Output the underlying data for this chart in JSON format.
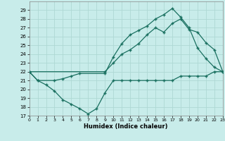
{
  "xlabel": "Humidex (Indice chaleur)",
  "bg_color": "#c8ecea",
  "grid_color": "#aed8d4",
  "line_color": "#1a7060",
  "xlim": [
    0,
    23
  ],
  "ylim": [
    17,
    30
  ],
  "yticks": [
    17,
    18,
    19,
    20,
    21,
    22,
    23,
    24,
    25,
    26,
    27,
    28,
    29
  ],
  "xticks": [
    0,
    1,
    2,
    3,
    4,
    5,
    6,
    7,
    8,
    9,
    10,
    11,
    12,
    13,
    14,
    15,
    16,
    17,
    18,
    19,
    20,
    21,
    22,
    23
  ],
  "line1_x": [
    0,
    1,
    2,
    3,
    4,
    5,
    6,
    7,
    8,
    9,
    10,
    11,
    12,
    13,
    14,
    15,
    16,
    17,
    18,
    19,
    20,
    21,
    22,
    23
  ],
  "line1_y": [
    22,
    21,
    20.5,
    19.8,
    18.8,
    18.3,
    17.8,
    17.2,
    17.8,
    19.6,
    21,
    21,
    21,
    21,
    21,
    21,
    21,
    21,
    21.5,
    21.5,
    21.5,
    21.5,
    22,
    22
  ],
  "line2_x": [
    0,
    1,
    3,
    4,
    5,
    6,
    9,
    10,
    11,
    12,
    13,
    14,
    15,
    16,
    17,
    18,
    19,
    20,
    21,
    22,
    23
  ],
  "line2_y": [
    22,
    21,
    21,
    21.2,
    21.5,
    21.8,
    21.8,
    23.7,
    25.2,
    26.2,
    26.7,
    27.2,
    28.0,
    28.5,
    29.2,
    28.2,
    27.0,
    24.7,
    23.5,
    22.5,
    22
  ],
  "line3_x": [
    0,
    9,
    10,
    11,
    12,
    13,
    14,
    15,
    16,
    17,
    18,
    19,
    20,
    21,
    22,
    23
  ],
  "line3_y": [
    22,
    22,
    23.0,
    24.0,
    24.5,
    25.2,
    26.2,
    27.0,
    26.5,
    27.5,
    28.0,
    26.8,
    26.5,
    25.3,
    24.5,
    22
  ]
}
